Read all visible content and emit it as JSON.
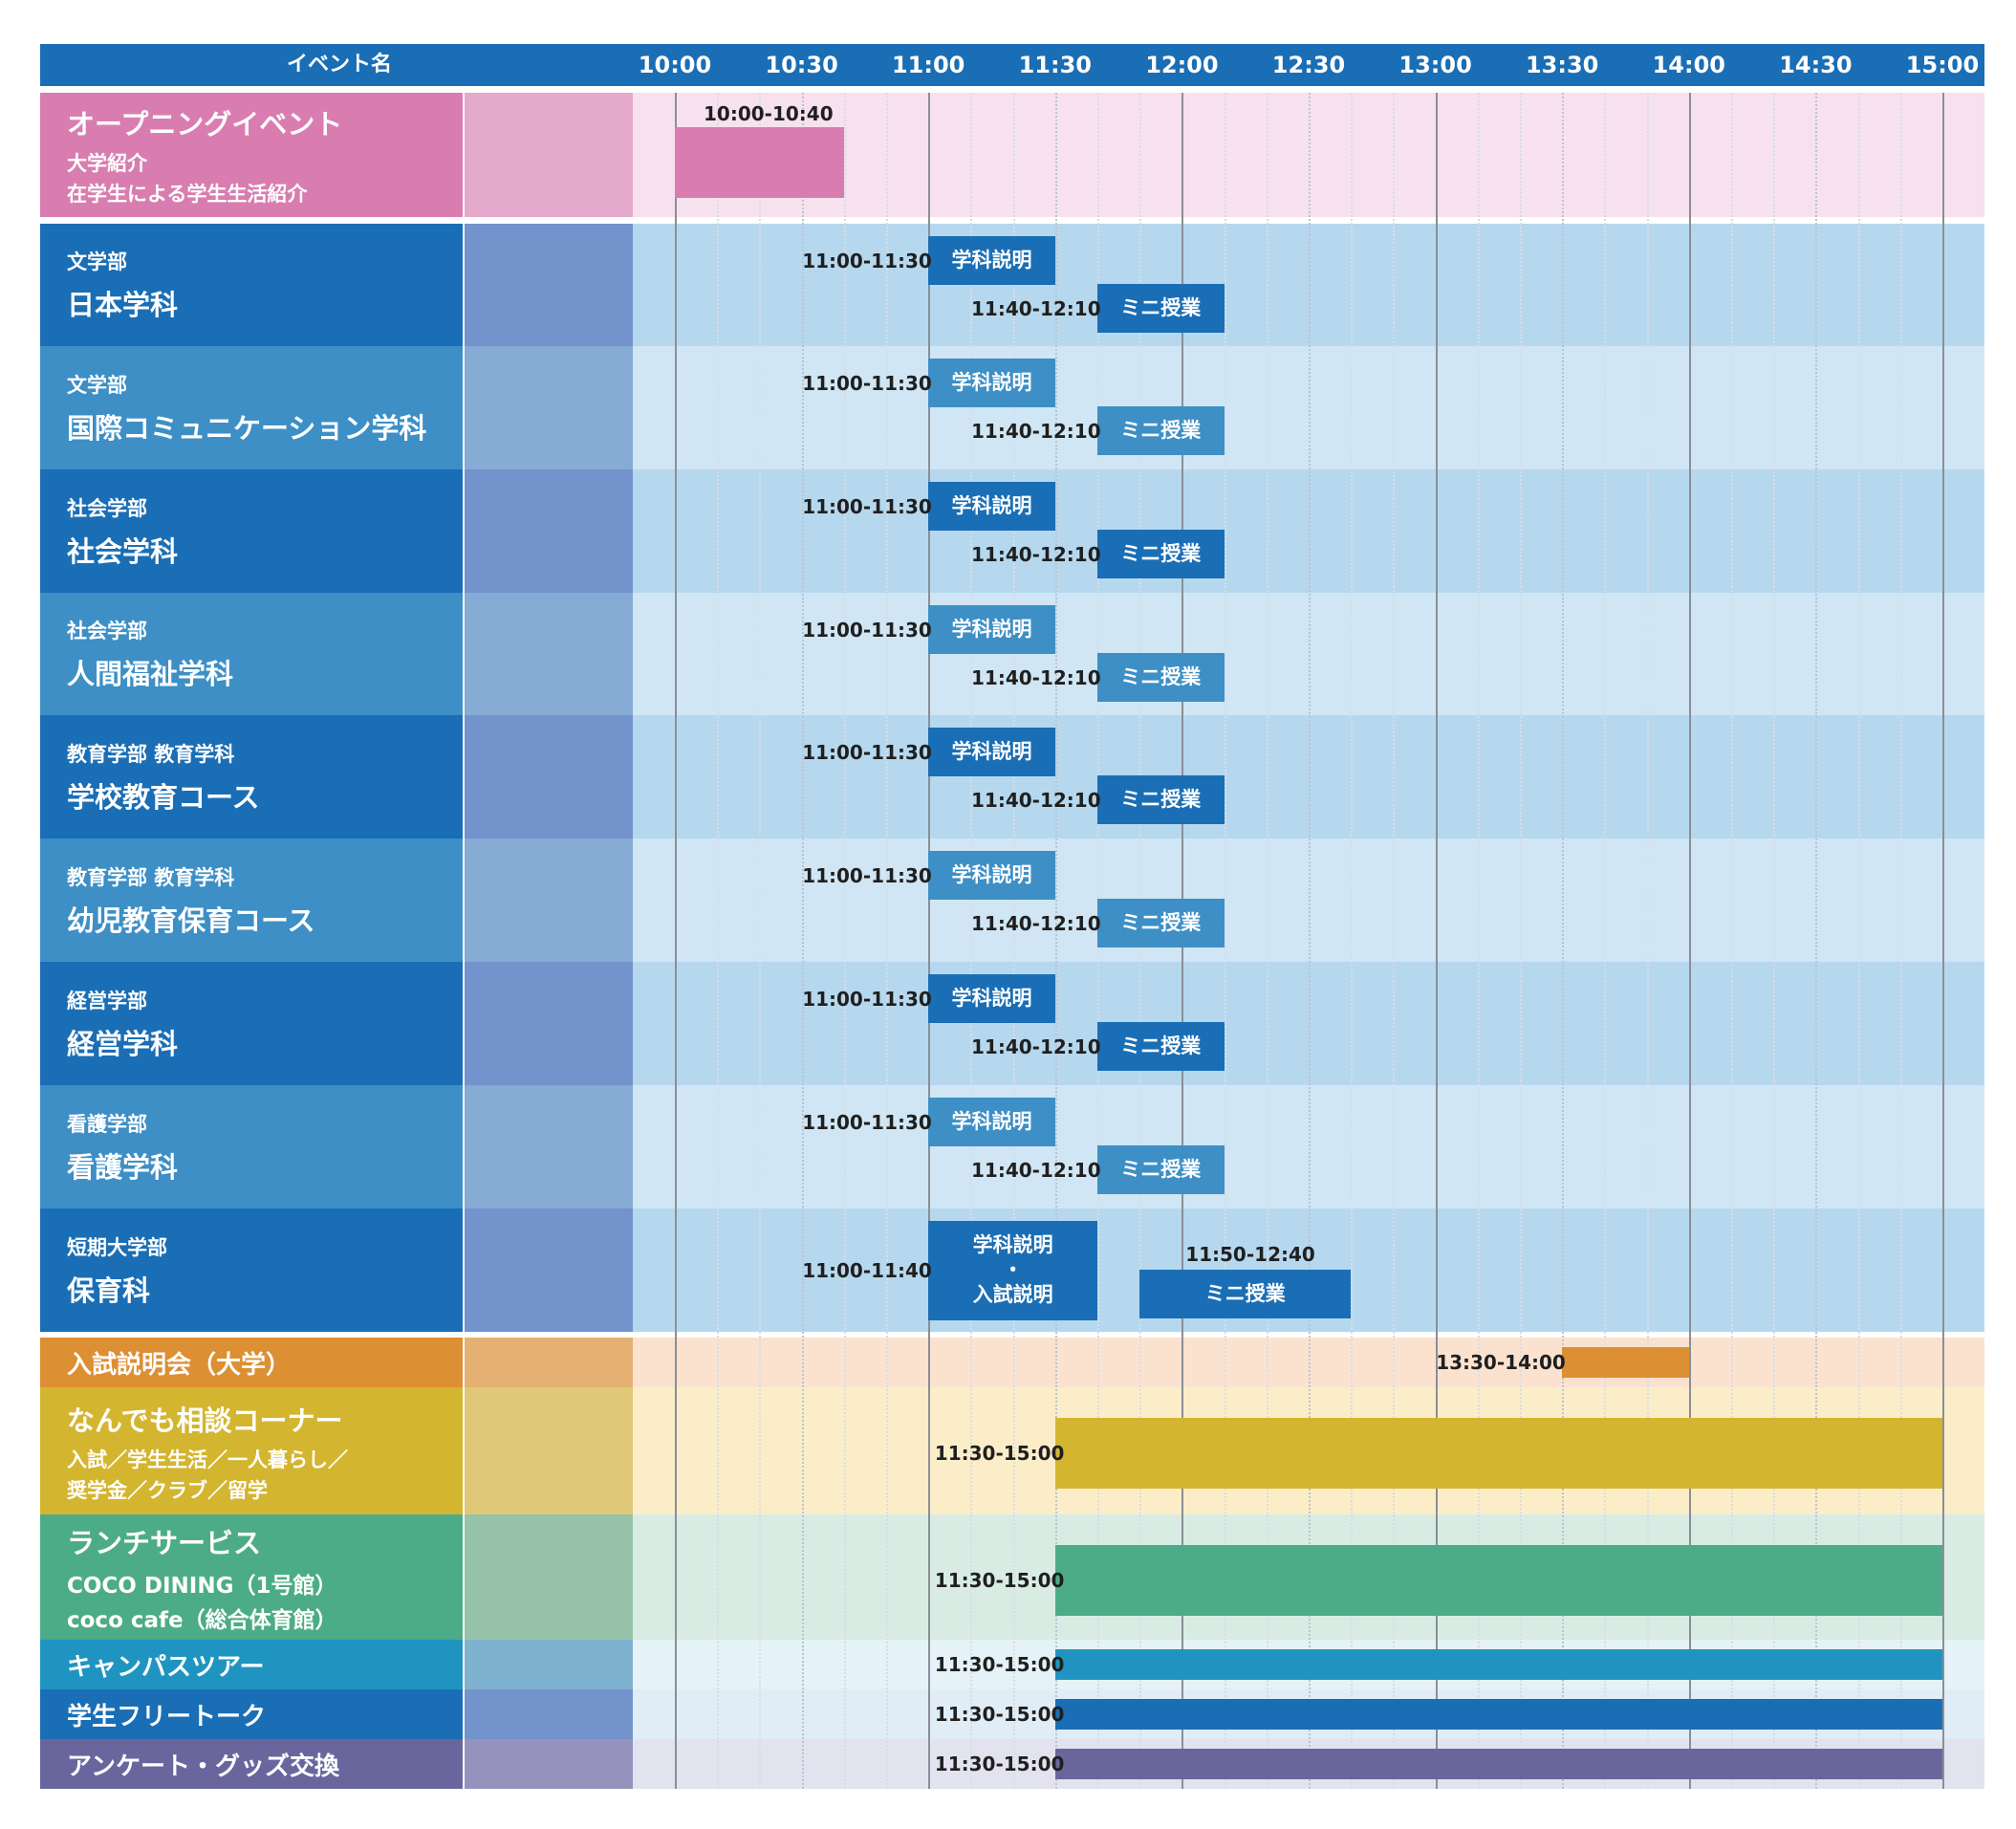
{
  "header": {
    "title": "イベント名",
    "ticks": [
      "10:00",
      "10:30",
      "11:00",
      "11:30",
      "12:00",
      "12:30",
      "13:00",
      "13:30",
      "14:00",
      "14:30",
      "15:00"
    ]
  },
  "colors": {
    "header_bg": "#1a6eb5",
    "dept_dark": "#1a6eb5",
    "dept_light": "#3d8fc6",
    "bar_dark": "#1a6eb5",
    "bar_light": "#3d8fc6"
  },
  "rows": [
    {
      "id": "opening",
      "sub_top": "",
      "main": "オープニングイベント",
      "sub_lines": [
        "大学紹介",
        "在学生による学生生活紹介"
      ],
      "name_bg": "#d97db0",
      "blank_bg": "#e4a9cb",
      "row_bg": "#f7e1ee",
      "bars": [
        {
          "label": "",
          "time": "10:00-10:40",
          "start": "10:00",
          "end": "10:40",
          "color": "#d97db0",
          "time_pos": "above"
        }
      ]
    },
    {
      "id": "nihon",
      "sub_top": "文学部",
      "main": "日本学科",
      "sub_lines": [],
      "name_bg": "#1a6eb5",
      "blank_bg": "#7293cc",
      "row_bg": "#b6d8ef",
      "bars": [
        {
          "label": "学科説明",
          "time": "11:00-11:30",
          "start": "11:00",
          "end": "11:30",
          "color": "#1a6eb5"
        },
        {
          "label": "ミニ授業",
          "time": "11:40-12:10",
          "start": "11:40",
          "end": "12:10",
          "color": "#1a6eb5"
        }
      ]
    },
    {
      "id": "kokusai",
      "sub_top": "文学部",
      "main": "国際コミュニケーション学科",
      "sub_lines": [],
      "name_bg": "#3d8fc6",
      "blank_bg": "#86abd4",
      "row_bg": "#d0e6f4",
      "bars": [
        {
          "label": "学科説明",
          "time": "11:00-11:30",
          "start": "11:00",
          "end": "11:30",
          "color": "#3d8fc6"
        },
        {
          "label": "ミニ授業",
          "time": "11:40-12:10",
          "start": "11:40",
          "end": "12:10",
          "color": "#3d8fc6"
        }
      ]
    },
    {
      "id": "shakai",
      "sub_top": "社会学部",
      "main": "社会学科",
      "sub_lines": [],
      "name_bg": "#1a6eb5",
      "blank_bg": "#7293cc",
      "row_bg": "#b6d8ef",
      "bars": [
        {
          "label": "学科説明",
          "time": "11:00-11:30",
          "start": "11:00",
          "end": "11:30",
          "color": "#1a6eb5"
        },
        {
          "label": "ミニ授業",
          "time": "11:40-12:10",
          "start": "11:40",
          "end": "12:10",
          "color": "#1a6eb5"
        }
      ]
    },
    {
      "id": "ningen",
      "sub_top": "社会学部",
      "main": "人間福祉学科",
      "sub_lines": [],
      "name_bg": "#3d8fc6",
      "blank_bg": "#86abd4",
      "row_bg": "#d0e6f4",
      "bars": [
        {
          "label": "学科説明",
          "time": "11:00-11:30",
          "start": "11:00",
          "end": "11:30",
          "color": "#3d8fc6"
        },
        {
          "label": "ミニ授業",
          "time": "11:40-12:10",
          "start": "11:40",
          "end": "12:10",
          "color": "#3d8fc6"
        }
      ]
    },
    {
      "id": "gakko",
      "sub_top": "教育学部 教育学科",
      "main": "学校教育コース",
      "sub_lines": [],
      "name_bg": "#1a6eb5",
      "blank_bg": "#7293cc",
      "row_bg": "#b6d8ef",
      "bars": [
        {
          "label": "学科説明",
          "time": "11:00-11:30",
          "start": "11:00",
          "end": "11:30",
          "color": "#1a6eb5"
        },
        {
          "label": "ミニ授業",
          "time": "11:40-12:10",
          "start": "11:40",
          "end": "12:10",
          "color": "#1a6eb5"
        }
      ]
    },
    {
      "id": "yoji",
      "sub_top": "教育学部 教育学科",
      "main": "幼児教育保育コース",
      "sub_lines": [],
      "name_bg": "#3d8fc6",
      "blank_bg": "#86abd4",
      "row_bg": "#d0e6f4",
      "bars": [
        {
          "label": "学科説明",
          "time": "11:00-11:30",
          "start": "11:00",
          "end": "11:30",
          "color": "#3d8fc6"
        },
        {
          "label": "ミニ授業",
          "time": "11:40-12:10",
          "start": "11:40",
          "end": "12:10",
          "color": "#3d8fc6"
        }
      ]
    },
    {
      "id": "keiei",
      "sub_top": "経営学部",
      "main": "経営学科",
      "sub_lines": [],
      "name_bg": "#1a6eb5",
      "blank_bg": "#7293cc",
      "row_bg": "#b6d8ef",
      "bars": [
        {
          "label": "学科説明",
          "time": "11:00-11:30",
          "start": "11:00",
          "end": "11:30",
          "color": "#1a6eb5"
        },
        {
          "label": "ミニ授業",
          "time": "11:40-12:10",
          "start": "11:40",
          "end": "12:10",
          "color": "#1a6eb5"
        }
      ]
    },
    {
      "id": "kango",
      "sub_top": "看護学部",
      "main": "看護学科",
      "sub_lines": [],
      "name_bg": "#3d8fc6",
      "blank_bg": "#86abd4",
      "row_bg": "#d0e6f4",
      "bars": [
        {
          "label": "学科説明",
          "time": "11:00-11:30",
          "start": "11:00",
          "end": "11:30",
          "color": "#3d8fc6"
        },
        {
          "label": "ミニ授業",
          "time": "11:40-12:10",
          "start": "11:40",
          "end": "12:10",
          "color": "#3d8fc6"
        }
      ]
    },
    {
      "id": "tanki",
      "sub_top": "短期大学部",
      "main": "保育科",
      "sub_lines": [],
      "name_bg": "#1a6eb5",
      "blank_bg": "#7293cc",
      "row_bg": "#b6d8ef",
      "bars": [
        {
          "label": "学科説明\n・\n入試説明",
          "time": "11:00-11:40",
          "start": "11:00",
          "end": "11:40",
          "color": "#1a6eb5",
          "tall": true
        },
        {
          "label": "ミニ授業",
          "time": "11:50-12:40",
          "start": "11:50",
          "end": "12:40",
          "color": "#1a6eb5",
          "time_pos": "above"
        }
      ]
    },
    {
      "id": "nyushi",
      "sub_top": "",
      "main": "入試説明会（大学）",
      "sub_lines": [],
      "name_bg": "#dc8f33",
      "blank_bg": "#e4b173",
      "row_bg": "#fbe2cf",
      "bars": [
        {
          "label": "",
          "time": "13:30-14:00",
          "start": "13:30",
          "end": "14:00",
          "color": "#dc8f33"
        }
      ]
    },
    {
      "id": "nandemo",
      "sub_top": "",
      "main": "なんでも相談コーナー",
      "sub_lines": [
        "入試／学生生活／一人暮らし／",
        "奨学金／クラブ／留学"
      ],
      "name_bg": "#d4b52f",
      "blank_bg": "#dfc978",
      "row_bg": "#fcedc9",
      "bars": [
        {
          "label": "",
          "time": "11:30-15:00",
          "start": "11:30",
          "end": "15:00",
          "color": "#d4b52f"
        }
      ]
    },
    {
      "id": "lunch",
      "sub_top": "",
      "main": "ランチサービス",
      "sub_lines": [
        "COCO DINING（1号館）",
        "coco cafe（総合体育館）"
      ],
      "name_bg": "#4dac88",
      "blank_bg": "#96c3a9",
      "row_bg": "#d8ece4",
      "bars": [
        {
          "label": "",
          "time": "11:30-15:00",
          "start": "11:30",
          "end": "15:00",
          "color": "#4dac88"
        }
      ]
    },
    {
      "id": "campus",
      "sub_top": "",
      "main": "キャンパスツアー",
      "sub_lines": [],
      "name_bg": "#2094c0",
      "blank_bg": "#7fb2cf",
      "row_bg": "#e5f2f8",
      "bars": [
        {
          "label": "",
          "time": "11:30-15:00",
          "start": "11:30",
          "end": "15:00",
          "color": "#2094c0"
        }
      ]
    },
    {
      "id": "free",
      "sub_top": "",
      "main": "学生フリートーク",
      "sub_lines": [],
      "name_bg": "#1a6eb5",
      "blank_bg": "#7293cc",
      "row_bg": "#e0ecf6",
      "bars": [
        {
          "label": "",
          "time": "11:30-15:00",
          "start": "11:30",
          "end": "15:00",
          "color": "#1a6eb5"
        }
      ]
    },
    {
      "id": "survey",
      "sub_top": "",
      "main": "アンケート・グッズ交換",
      "sub_lines": [],
      "name_bg": "#69669e",
      "blank_bg": "#9592bd",
      "row_bg": "#e3e3f0",
      "bars": [
        {
          "label": "",
          "time": "11:30-15:00",
          "start": "11:30",
          "end": "15:00",
          "color": "#69669e"
        }
      ]
    }
  ]
}
